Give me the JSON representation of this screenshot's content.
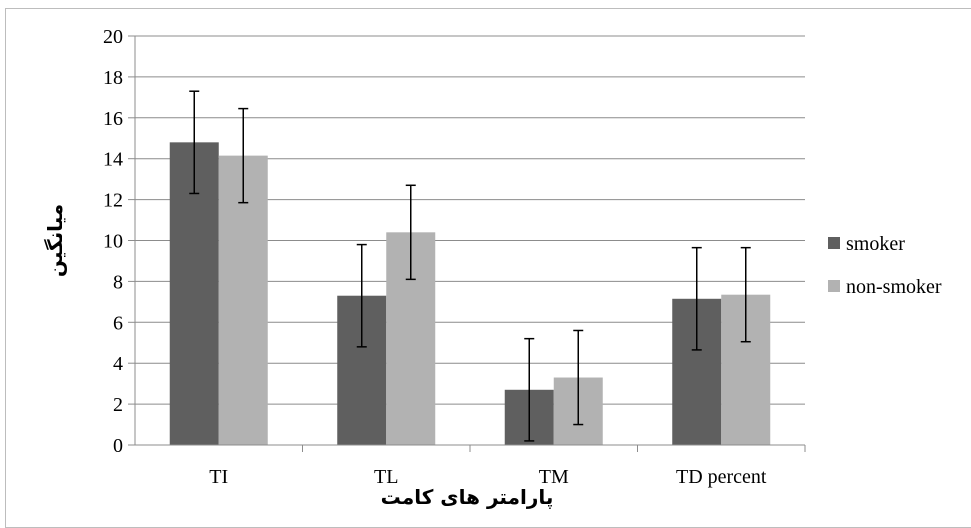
{
  "chart_data": {
    "type": "bar",
    "categories": [
      "TI",
      "TL",
      "TM",
      "TD percent"
    ],
    "series": [
      {
        "name": "smoker",
        "values": [
          14.8,
          7.3,
          2.7,
          7.15
        ],
        "error": [
          2.5,
          2.5,
          2.5,
          2.5
        ],
        "color": "#5f5f5f"
      },
      {
        "name": "non-smoker",
        "values": [
          14.15,
          10.4,
          3.3,
          7.35
        ],
        "error": [
          2.3,
          2.3,
          2.3,
          2.3
        ],
        "color": "#b2b2b2"
      }
    ],
    "xlabel": "پارامتر های کامت",
    "ylabel": "میانگین",
    "ylim": [
      0,
      20
    ],
    "yticks": [
      "0",
      "2",
      "4",
      "6",
      "8",
      "10",
      "12",
      "14",
      "16",
      "18",
      "20"
    ],
    "grid": true,
    "legend_position": "right"
  }
}
